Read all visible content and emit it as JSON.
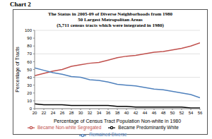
{
  "chart_data": {
    "type": "line",
    "heading": "Chart 2",
    "title": "The Status in 2005-09 of Diverse Neighborhoods from 1980",
    "subtitle": "50 Largest Metropolitan Areas",
    "note": "(5,711 census tracts which were integrated in 1980)",
    "x_label": "Percentage of Census Tract Population Non-white in 1980",
    "y_label": "Percentage of Tracts",
    "x": [
      20,
      22,
      24,
      26,
      28,
      30,
      32,
      34,
      36,
      38,
      40,
      42,
      44,
      46,
      48,
      50,
      52,
      54,
      56
    ],
    "series": [
      {
        "name": "Became Non-white Segregated",
        "color": "#c0504d",
        "values": [
          42,
          45,
          48,
          50,
          54,
          56,
          58,
          59,
          62,
          65,
          67,
          68,
          70,
          72,
          73,
          75,
          77,
          80,
          84
        ]
      },
      {
        "name": "Remained Diverse",
        "color": "#4f81bd",
        "values": [
          52,
          49,
          46,
          44,
          41,
          40,
          37,
          36,
          34,
          31,
          30,
          29,
          27,
          25,
          24,
          22,
          20,
          18,
          14
        ]
      },
      {
        "name": "Became Predominantly White",
        "color": "#000000",
        "values": [
          6,
          5,
          5,
          5,
          4,
          4,
          4,
          4,
          4,
          3,
          3,
          2,
          2,
          2,
          2,
          2,
          2,
          1,
          1
        ]
      }
    ],
    "xlim": [
      20,
      56
    ],
    "xticks": [
      20,
      22,
      24,
      26,
      28,
      30,
      32,
      34,
      36,
      38,
      40,
      42,
      44,
      46,
      48,
      50,
      52,
      54,
      56
    ],
    "ylim": [
      0,
      100
    ],
    "yticks": [
      0,
      10,
      20,
      30,
      40,
      50,
      60,
      70,
      80,
      90,
      100
    ],
    "grid": true,
    "legend": "bottom"
  }
}
